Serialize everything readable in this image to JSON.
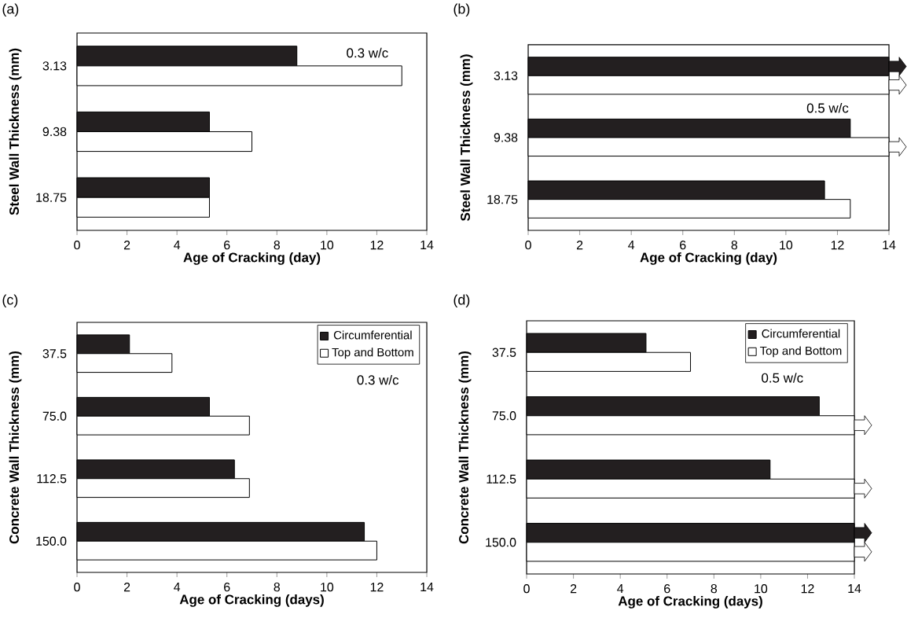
{
  "chart_data": [
    {
      "type": "bar",
      "orientation": "horizontal",
      "title": "(a)",
      "xlabel": "Age of Cracking (day)",
      "ylabel": "Steel Wall Thickness (mm)",
      "categories": [
        "3.13",
        "9.38",
        "18.75"
      ],
      "series": [
        {
          "color": "#231f20",
          "values": [
            8.8,
            5.3,
            5.3
          ]
        },
        {
          "color": "#ffffff",
          "values": [
            13.0,
            7.0,
            5.3
          ]
        }
      ],
      "xlim": [
        0,
        14
      ],
      "xticks": [
        0,
        2,
        4,
        6,
        8,
        10,
        12,
        14
      ],
      "annotations": [
        "0.3 w/c"
      ]
    },
    {
      "type": "bar",
      "orientation": "horizontal",
      "title": "(b)",
      "xlabel": "Age of Cracking (day)",
      "ylabel": "Steel Wall Thickness (mm)",
      "categories": [
        "3.13",
        "9.38",
        "18.75"
      ],
      "series": [
        {
          "color": "#231f20",
          "values": [
            14,
            12.5,
            11.5
          ]
        },
        {
          "color": "#ffffff",
          "values": [
            14,
            14,
            12.5
          ]
        }
      ],
      "xlim": [
        0,
        14
      ],
      "xticks": [
        0,
        2,
        4,
        6,
        8,
        10,
        12,
        14
      ],
      "annotations": [
        "0.5 w/c"
      ]
    },
    {
      "type": "bar",
      "orientation": "horizontal",
      "title": "(c)",
      "xlabel": "Age of Cracking (days)",
      "ylabel": "Concrete Wall Thickness (mm)",
      "categories": [
        "37.5",
        "75.0",
        "112.5",
        "150.0"
      ],
      "series": [
        {
          "name": "Circumferential",
          "color": "#231f20",
          "values": [
            2.1,
            5.3,
            6.3,
            11.5
          ]
        },
        {
          "name": "Top and Bottom",
          "color": "#ffffff",
          "values": [
            3.8,
            6.9,
            6.9,
            12.0
          ]
        }
      ],
      "xlim": [
        0,
        14
      ],
      "xticks": [
        0,
        2,
        4,
        6,
        8,
        10,
        12,
        14
      ],
      "legend": "top right",
      "annotations": [
        "0.3 w/c"
      ]
    },
    {
      "type": "bar",
      "orientation": "horizontal",
      "title": "(d)",
      "xlabel": "Age of Cracking (days)",
      "ylabel": "Concrete Wall Thickness (mm)",
      "categories": [
        "37.5",
        "75.0",
        "112.5",
        "150.0"
      ],
      "series": [
        {
          "name": "Circumferential",
          "color": "#231f20",
          "values": [
            5.1,
            12.5,
            10.4,
            14
          ]
        },
        {
          "name": "Top and Bottom",
          "color": "#ffffff",
          "values": [
            7.0,
            14,
            14,
            14
          ]
        }
      ],
      "xlim": [
        0,
        14
      ],
      "xticks": [
        0,
        2,
        4,
        6,
        8,
        10,
        12,
        14
      ],
      "legend": "top right",
      "annotations": [
        "0.5 w/c"
      ]
    }
  ]
}
